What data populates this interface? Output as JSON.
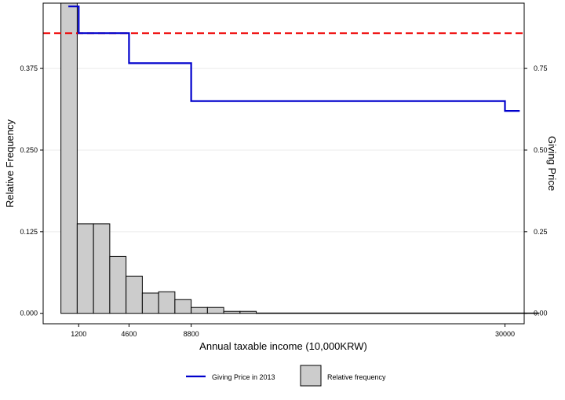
{
  "chart_data": {
    "type": "bar",
    "title": "",
    "xlabel": "Annual taxable income (10,000KRW)",
    "ylabel": "Relative Frequency",
    "y2label": "Giving Price",
    "xlim": [
      -1200,
      31300
    ],
    "ylim": [
      -0.016,
      0.475
    ],
    "y2lim": [
      -0.032,
      0.95
    ],
    "x_ticks": [
      1200,
      4600,
      8800,
      30000
    ],
    "y_ticks": [
      0.0,
      0.125,
      0.25,
      0.375
    ],
    "y2_ticks": [
      0.0,
      0.25,
      0.5,
      0.75
    ],
    "grid": "horizontal-major",
    "histogram": {
      "name": "Relative frequency",
      "color": "#cccccc",
      "bin_width": 1100,
      "bins": [
        {
          "x0": 0,
          "x1": 1100,
          "value": 0.475
        },
        {
          "x0": 1100,
          "x1": 2200,
          "value": 0.137
        },
        {
          "x0": 2200,
          "x1": 3300,
          "value": 0.137
        },
        {
          "x0": 3300,
          "x1": 4400,
          "value": 0.087
        },
        {
          "x0": 4400,
          "x1": 5500,
          "value": 0.057
        },
        {
          "x0": 5500,
          "x1": 6600,
          "value": 0.031
        },
        {
          "x0": 6600,
          "x1": 7700,
          "value": 0.033
        },
        {
          "x0": 7700,
          "x1": 8800,
          "value": 0.021
        },
        {
          "x0": 8800,
          "x1": 9900,
          "value": 0.009
        },
        {
          "x0": 9900,
          "x1": 11000,
          "value": 0.009
        },
        {
          "x0": 11000,
          "x1": 12100,
          "value": 0.003
        },
        {
          "x0": 12100,
          "x1": 13200,
          "value": 0.003
        },
        {
          "x0": 13200,
          "x1": 32300,
          "value": 0.0005
        }
      ]
    },
    "series": [
      {
        "name": "Giving Price in 2013",
        "color": "#0000cc",
        "axis": "right",
        "step": [
          {
            "x": 500,
            "y": 0.94
          },
          {
            "x": 1200,
            "y": 0.94
          },
          {
            "x": 1200,
            "y": 0.858
          },
          {
            "x": 4600,
            "y": 0.858
          },
          {
            "x": 4600,
            "y": 0.766
          },
          {
            "x": 8800,
            "y": 0.766
          },
          {
            "x": 8800,
            "y": 0.65
          },
          {
            "x": 30000,
            "y": 0.65
          },
          {
            "x": 30000,
            "y": 0.62
          },
          {
            "x": 31000,
            "y": 0.62
          }
        ]
      }
    ],
    "reference_line": {
      "axis": "right",
      "y": 0.858,
      "color": "#ee0000",
      "style": "dashed"
    },
    "legend": {
      "position": "bottom",
      "items": [
        {
          "label": "Giving Price in 2013",
          "type": "line",
          "color": "#0000cc"
        },
        {
          "label": "Relative frequency",
          "type": "box",
          "color": "#cccccc"
        }
      ]
    }
  }
}
